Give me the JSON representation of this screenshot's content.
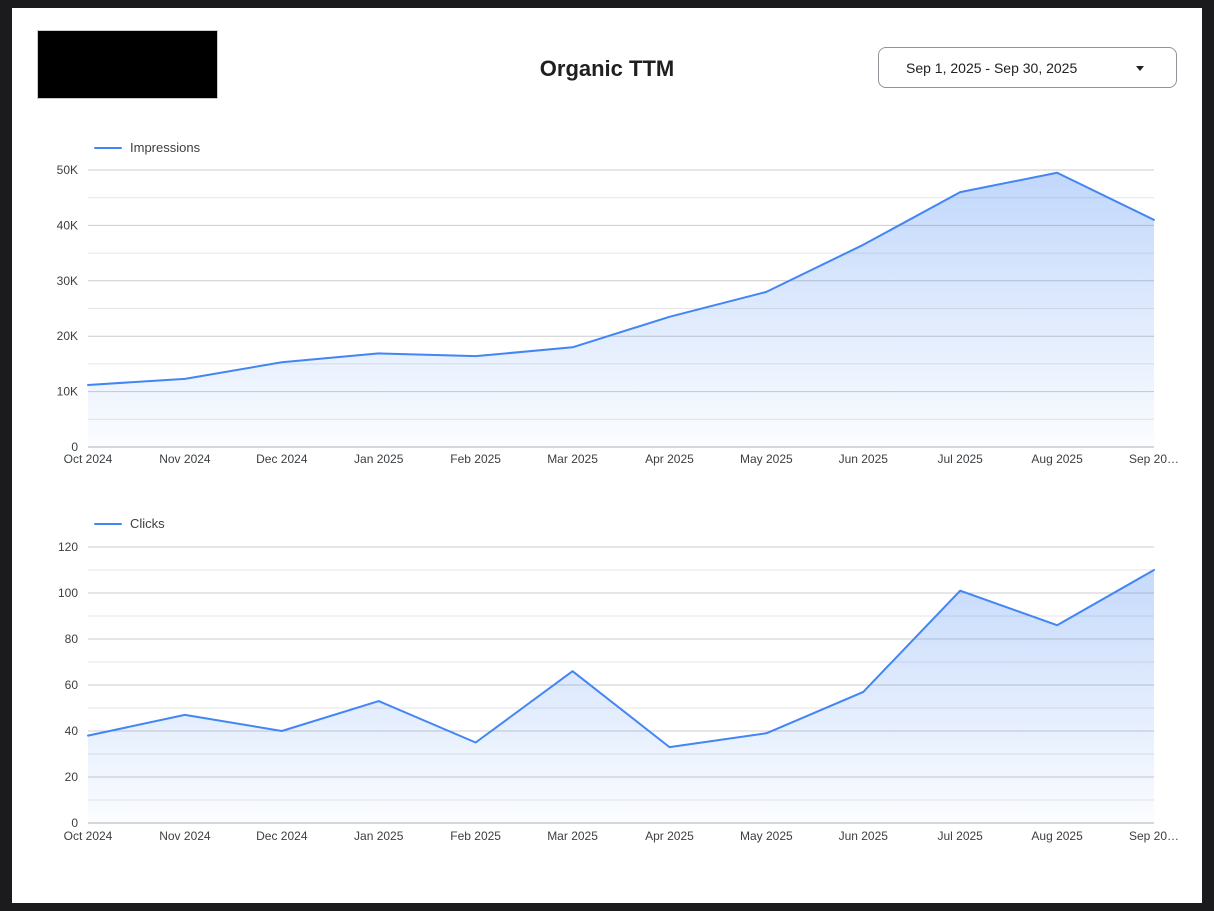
{
  "window": {
    "frame_color": "#1b1b1d",
    "content_background": "#ffffff"
  },
  "header": {
    "logo_color": "#000000",
    "title": "Organic TTM",
    "date_range_selector": {
      "value": "Sep 1, 2025 - Sep 30, 2025",
      "caret_icon": "caret-down"
    }
  },
  "theme": {
    "line_color": "#4285f4",
    "area_fill_color": "#4285f4",
    "grid_major_color": "#cccccc",
    "grid_minor_color": "#e6e6e6",
    "axis_line_color": "#b0b0b0",
    "tick_label_color": "#3c4043",
    "legend_label_color": "#3c4043"
  },
  "chart_data": [
    {
      "type": "area",
      "title": "",
      "series": [
        {
          "name": "Impressions",
          "color": "#4285f4",
          "values": [
            11200,
            12300,
            15300,
            16900,
            16400,
            18000,
            23500,
            28000,
            36500,
            46000,
            49500,
            41000
          ]
        }
      ],
      "categories": [
        "Oct 2024",
        "Nov 2024",
        "Dec 2024",
        "Jan 2025",
        "Feb 2025",
        "Mar 2025",
        "Apr 2025",
        "May 2025",
        "Jun 2025",
        "Jul 2025",
        "Aug 2025",
        "Sep 2025"
      ],
      "x_tick_labels": [
        "Oct 2024",
        "Nov 2024",
        "Dec 2024",
        "Jan 2025",
        "Feb 2025",
        "Mar 2025",
        "Apr 2025",
        "May 2025",
        "Jun 2025",
        "Jul 2025",
        "Aug 2025",
        "Sep 20…"
      ],
      "y_tick_labels": [
        "0",
        "10K",
        "20K",
        "30K",
        "40K",
        "50K"
      ],
      "ylim": [
        0,
        50000
      ],
      "y_major_step": 10000,
      "y_minor_step": 5000,
      "grid": true,
      "legend_position": "top-left"
    },
    {
      "type": "area",
      "title": "",
      "series": [
        {
          "name": "Clicks",
          "color": "#4285f4",
          "values": [
            38,
            47,
            40,
            53,
            35,
            66,
            33,
            39,
            57,
            101,
            86,
            110
          ]
        }
      ],
      "categories": [
        "Oct 2024",
        "Nov 2024",
        "Dec 2024",
        "Jan 2025",
        "Feb 2025",
        "Mar 2025",
        "Apr 2025",
        "May 2025",
        "Jun 2025",
        "Jul 2025",
        "Aug 2025",
        "Sep 2025"
      ],
      "x_tick_labels": [
        "Oct 2024",
        "Nov 2024",
        "Dec 2024",
        "Jan 2025",
        "Feb 2025",
        "Mar 2025",
        "Apr 2025",
        "May 2025",
        "Jun 2025",
        "Jul 2025",
        "Aug 2025",
        "Sep 20…"
      ],
      "y_tick_labels": [
        "0",
        "20",
        "40",
        "60",
        "80",
        "100",
        "120"
      ],
      "ylim": [
        0,
        120
      ],
      "y_major_step": 20,
      "y_minor_step": 10,
      "grid": true,
      "legend_position": "top-left"
    }
  ]
}
